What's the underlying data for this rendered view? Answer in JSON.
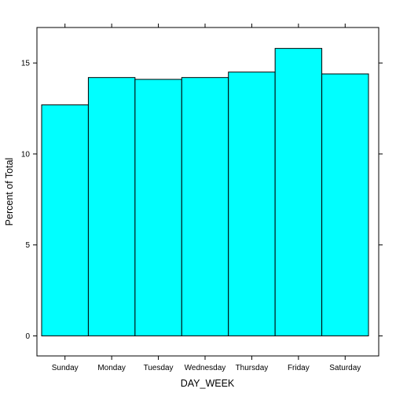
{
  "chart_data": {
    "type": "bar",
    "title": "",
    "xlabel": "DAY_WEEK",
    "ylabel": "Percent of Total",
    "categories": [
      "Sunday",
      "Monday",
      "Tuesday",
      "Wednesday",
      "Thursday",
      "Friday",
      "Saturday"
    ],
    "values": [
      12.7,
      14.2,
      14.1,
      14.2,
      14.5,
      15.8,
      14.4
    ],
    "ylim": [
      -1.1,
      16.95
    ],
    "yticks": [
      "0",
      "5",
      "10",
      "15"
    ],
    "grid": false,
    "legend": "none",
    "bar_fill": "#00ffff",
    "bar_stroke": "#000000",
    "axis_color": "#000000"
  }
}
